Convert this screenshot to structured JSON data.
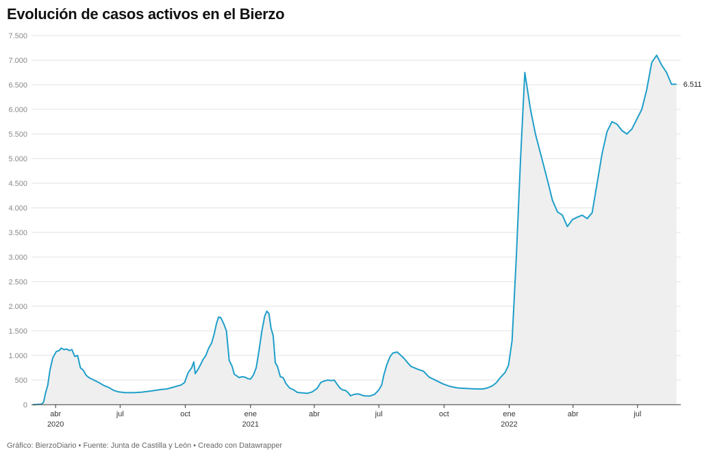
{
  "title": "Evolución de casos activos en el Bierzo",
  "footer": "Gráfico: BierzoDiario • Fuente: Junta de Castilla y León • Creado con Datawrapper",
  "colors": {
    "line": "#1d9ec9",
    "area": "#efefef",
    "grid": "#e0e0e0",
    "axis": "#333333"
  },
  "chart_data": {
    "type": "area",
    "title": "Evolución de casos activos en el Bierzo",
    "xlabel": "",
    "ylabel": "",
    "ylim": [
      0,
      7500
    ],
    "xlim": [
      "2020-02-27",
      "2022-08-31"
    ],
    "grid": true,
    "y_ticks": [
      0,
      500,
      1000,
      1500,
      2000,
      2500,
      3000,
      3500,
      4000,
      4500,
      5000,
      5500,
      6000,
      6500,
      7000,
      7500
    ],
    "y_tick_labels": [
      "0",
      "500",
      "1.000",
      "1.500",
      "2.000",
      "2.500",
      "3.000",
      "3.500",
      "4.000",
      "4.500",
      "5.000",
      "5.500",
      "6.000",
      "6.500",
      "7.000",
      "7.500"
    ],
    "x_ticks": [
      {
        "date": "2020-04-01",
        "label": "abr",
        "year": "2020"
      },
      {
        "date": "2020-07-01",
        "label": "jul",
        "year": ""
      },
      {
        "date": "2020-10-01",
        "label": "oct",
        "year": ""
      },
      {
        "date": "2021-01-01",
        "label": "ene",
        "year": "2021"
      },
      {
        "date": "2021-04-01",
        "label": "abr",
        "year": ""
      },
      {
        "date": "2021-07-01",
        "label": "jul",
        "year": ""
      },
      {
        "date": "2021-10-01",
        "label": "oct",
        "year": ""
      },
      {
        "date": "2022-01-01",
        "label": "ene",
        "year": "2022"
      },
      {
        "date": "2022-04-01",
        "label": "abr",
        "year": ""
      },
      {
        "date": "2022-07-01",
        "label": "jul",
        "year": ""
      }
    ],
    "last_value_label": "6.511",
    "series": [
      {
        "points": [
          [
            "2020-02-29",
            0
          ],
          [
            "2020-03-12",
            10
          ],
          [
            "2020-03-15",
            50
          ],
          [
            "2020-03-18",
            250
          ],
          [
            "2020-03-21",
            400
          ],
          [
            "2020-03-24",
            700
          ],
          [
            "2020-03-28",
            950
          ],
          [
            "2020-04-02",
            1080
          ],
          [
            "2020-04-06",
            1100
          ],
          [
            "2020-04-09",
            1150
          ],
          [
            "2020-04-13",
            1120
          ],
          [
            "2020-04-17",
            1130
          ],
          [
            "2020-04-20",
            1100
          ],
          [
            "2020-04-24",
            1120
          ],
          [
            "2020-04-28",
            980
          ],
          [
            "2020-05-02",
            1000
          ],
          [
            "2020-05-06",
            750
          ],
          [
            "2020-05-10",
            700
          ],
          [
            "2020-05-14",
            600
          ],
          [
            "2020-05-18",
            550
          ],
          [
            "2020-05-25",
            500
          ],
          [
            "2020-06-01",
            450
          ],
          [
            "2020-06-08",
            390
          ],
          [
            "2020-06-15",
            350
          ],
          [
            "2020-06-22",
            290
          ],
          [
            "2020-06-29",
            260
          ],
          [
            "2020-07-08",
            245
          ],
          [
            "2020-07-20",
            245
          ],
          [
            "2020-08-01",
            255
          ],
          [
            "2020-08-15",
            280
          ],
          [
            "2020-08-28",
            310
          ],
          [
            "2020-09-05",
            320
          ],
          [
            "2020-09-15",
            360
          ],
          [
            "2020-09-25",
            400
          ],
          [
            "2020-09-30",
            450
          ],
          [
            "2020-10-05",
            650
          ],
          [
            "2020-10-10",
            750
          ],
          [
            "2020-10-13",
            870
          ],
          [
            "2020-10-15",
            630
          ],
          [
            "2020-10-19",
            720
          ],
          [
            "2020-10-22",
            800
          ],
          [
            "2020-10-26",
            920
          ],
          [
            "2020-10-30",
            1000
          ],
          [
            "2020-11-03",
            1150
          ],
          [
            "2020-11-07",
            1250
          ],
          [
            "2020-11-11",
            1450
          ],
          [
            "2020-11-14",
            1650
          ],
          [
            "2020-11-17",
            1780
          ],
          [
            "2020-11-20",
            1770
          ],
          [
            "2020-11-24",
            1650
          ],
          [
            "2020-11-28",
            1500
          ],
          [
            "2020-12-02",
            900
          ],
          [
            "2020-12-06",
            780
          ],
          [
            "2020-12-09",
            620
          ],
          [
            "2020-12-13",
            580
          ],
          [
            "2020-12-16",
            550
          ],
          [
            "2020-12-20",
            570
          ],
          [
            "2020-12-24",
            560
          ],
          [
            "2020-12-28",
            530
          ],
          [
            "2021-01-01",
            520
          ],
          [
            "2021-01-05",
            600
          ],
          [
            "2021-01-09",
            750
          ],
          [
            "2021-01-13",
            1100
          ],
          [
            "2021-01-17",
            1500
          ],
          [
            "2021-01-21",
            1800
          ],
          [
            "2021-01-24",
            1900
          ],
          [
            "2021-01-27",
            1850
          ],
          [
            "2021-01-30",
            1550
          ],
          [
            "2021-02-02",
            1400
          ],
          [
            "2021-02-05",
            850
          ],
          [
            "2021-02-08",
            780
          ],
          [
            "2021-02-12",
            570
          ],
          [
            "2021-02-16",
            550
          ],
          [
            "2021-02-20",
            430
          ],
          [
            "2021-02-25",
            340
          ],
          [
            "2021-03-03",
            300
          ],
          [
            "2021-03-08",
            250
          ],
          [
            "2021-03-15",
            240
          ],
          [
            "2021-03-22",
            230
          ],
          [
            "2021-03-29",
            260
          ],
          [
            "2021-04-05",
            330
          ],
          [
            "2021-04-10",
            450
          ],
          [
            "2021-04-15",
            480
          ],
          [
            "2021-04-20",
            500
          ],
          [
            "2021-04-25",
            490
          ],
          [
            "2021-04-29",
            500
          ],
          [
            "2021-05-03",
            420
          ],
          [
            "2021-05-07",
            340
          ],
          [
            "2021-05-11",
            300
          ],
          [
            "2021-05-15",
            290
          ],
          [
            "2021-05-19",
            240
          ],
          [
            "2021-05-22",
            180
          ],
          [
            "2021-05-27",
            210
          ],
          [
            "2021-06-02",
            220
          ],
          [
            "2021-06-10",
            180
          ],
          [
            "2021-06-18",
            175
          ],
          [
            "2021-06-25",
            210
          ],
          [
            "2021-07-01",
            300
          ],
          [
            "2021-07-05",
            400
          ],
          [
            "2021-07-08",
            600
          ],
          [
            "2021-07-12",
            800
          ],
          [
            "2021-07-17",
            980
          ],
          [
            "2021-07-21",
            1050
          ],
          [
            "2021-07-27",
            1070
          ],
          [
            "2021-08-05",
            950
          ],
          [
            "2021-08-15",
            780
          ],
          [
            "2021-08-25",
            720
          ],
          [
            "2021-09-02",
            680
          ],
          [
            "2021-09-10",
            560
          ],
          [
            "2021-09-20",
            490
          ],
          [
            "2021-09-30",
            420
          ],
          [
            "2021-10-10",
            370
          ],
          [
            "2021-10-20",
            340
          ],
          [
            "2021-11-01",
            330
          ],
          [
            "2021-11-15",
            320
          ],
          [
            "2021-11-25",
            320
          ],
          [
            "2021-12-01",
            340
          ],
          [
            "2021-12-08",
            380
          ],
          [
            "2021-12-14",
            450
          ],
          [
            "2021-12-20",
            560
          ],
          [
            "2021-12-26",
            650
          ],
          [
            "2021-12-31",
            800
          ],
          [
            "2022-01-05",
            1300
          ],
          [
            "2022-01-11",
            3000
          ],
          [
            "2022-01-17",
            5000
          ],
          [
            "2022-01-23",
            6750
          ],
          [
            "2022-01-31",
            6000
          ],
          [
            "2022-02-07",
            5500
          ],
          [
            "2022-02-16",
            5000
          ],
          [
            "2022-02-25",
            4500
          ],
          [
            "2022-03-03",
            4150
          ],
          [
            "2022-03-10",
            3920
          ],
          [
            "2022-03-17",
            3850
          ],
          [
            "2022-03-24",
            3620
          ],
          [
            "2022-03-31",
            3760
          ],
          [
            "2022-04-07",
            3810
          ],
          [
            "2022-04-14",
            3850
          ],
          [
            "2022-04-21",
            3780
          ],
          [
            "2022-04-28",
            3900
          ],
          [
            "2022-05-05",
            4500
          ],
          [
            "2022-05-12",
            5100
          ],
          [
            "2022-05-19",
            5550
          ],
          [
            "2022-05-26",
            5750
          ],
          [
            "2022-06-02",
            5700
          ],
          [
            "2022-06-09",
            5570
          ],
          [
            "2022-06-16",
            5500
          ],
          [
            "2022-06-23",
            5600
          ],
          [
            "2022-06-30",
            5800
          ],
          [
            "2022-07-07",
            6000
          ],
          [
            "2022-07-14",
            6400
          ],
          [
            "2022-07-21",
            6950
          ],
          [
            "2022-07-28",
            7100
          ],
          [
            "2022-08-04",
            6900
          ],
          [
            "2022-08-11",
            6750
          ],
          [
            "2022-08-18",
            6511
          ],
          [
            "2022-08-25",
            6511
          ]
        ]
      }
    ]
  }
}
